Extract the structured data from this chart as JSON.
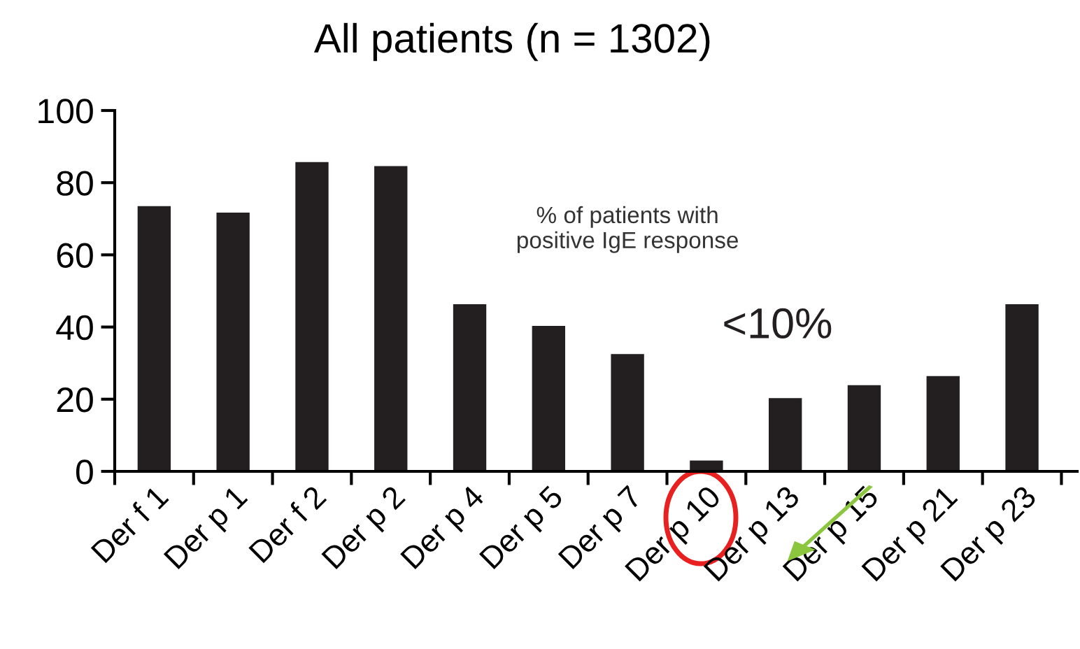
{
  "chart_data": {
    "type": "bar",
    "title": "All patients (n = 1302)",
    "categories": [
      "Der f 1",
      "Der p 1",
      "Der f 2",
      "Der p 2",
      "Der p 4",
      "Der p 5",
      "Der p 7",
      "Der p 10",
      "Der p 13",
      "Der p 15",
      "Der p 21",
      "Der p 23"
    ],
    "values": [
      73.5,
      71.7,
      85.7,
      84.6,
      46.3,
      40.3,
      32.5,
      3.0,
      20.3,
      23.9,
      26.4,
      46.3
    ],
    "color": "#231f20",
    "ylim": [
      0,
      100
    ],
    "yticks": [
      0,
      20,
      40,
      60,
      80,
      100
    ],
    "grid": false,
    "legend": false,
    "annotations": [
      "% of patients with\npositive IgE response",
      "<10%"
    ]
  }
}
